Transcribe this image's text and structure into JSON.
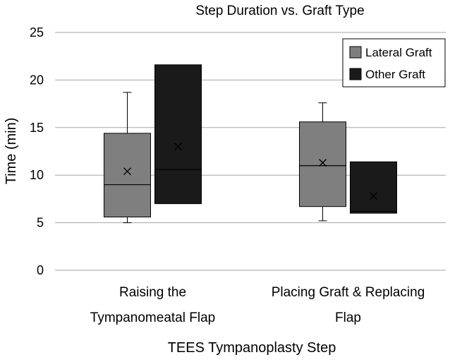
{
  "chart_data": {
    "type": "box",
    "title": "Step Duration vs. Graft Type",
    "xlabel": "TEES Tympanoplasty Step",
    "ylabel": "Time (min)",
    "ylim": [
      0,
      25
    ],
    "yticks": [
      0,
      5,
      10,
      15,
      20,
      25
    ],
    "grid": true,
    "legend_position": "top-right",
    "categories": [
      [
        "Raising the",
        "Tympanomeatal Flap"
      ],
      [
        "Placing Graft & Replacing",
        "Flap"
      ]
    ],
    "series": [
      {
        "name": "Lateral Graft",
        "color": "#7f7f7f",
        "boxes": [
          {
            "min": 5.0,
            "q1": 5.6,
            "median": 9.0,
            "q3": 14.4,
            "max": 18.7,
            "mean": 10.4
          },
          {
            "min": 5.2,
            "q1": 6.7,
            "median": 11.0,
            "q3": 15.6,
            "max": 17.6,
            "mean": 11.3
          }
        ]
      },
      {
        "name": "Other Graft",
        "color": "#1a1a1a",
        "boxes": [
          {
            "min": 7.0,
            "q1": 7.0,
            "median": 10.6,
            "q3": 21.6,
            "max": 21.6,
            "mean": 13.0
          },
          {
            "min": 6.0,
            "q1": 6.0,
            "median": 6.2,
            "q3": 11.4,
            "max": 11.4,
            "mean": 7.8
          }
        ]
      }
    ]
  }
}
